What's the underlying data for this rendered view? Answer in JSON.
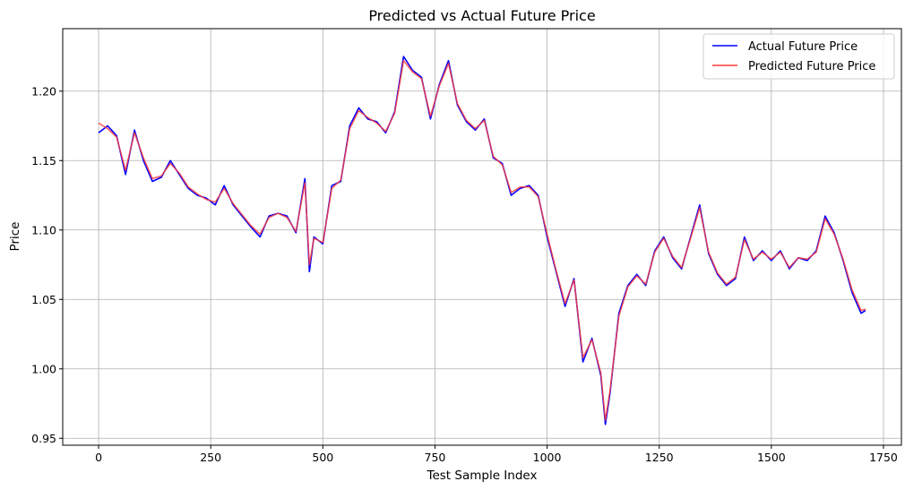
{
  "chart_data": {
    "type": "line",
    "title": "Predicted vs Actual Future Price",
    "xlabel": "Test Sample Index",
    "ylabel": "Price",
    "xlim": [
      -80,
      1790
    ],
    "ylim": [
      0.945,
      1.245
    ],
    "xticks": [
      0,
      250,
      500,
      750,
      1000,
      1250,
      1500,
      1750
    ],
    "yticks": [
      0.95,
      1.0,
      1.05,
      1.1,
      1.15,
      1.2
    ],
    "ytick_labels": [
      "0.95",
      "1.00",
      "1.05",
      "1.10",
      "1.15",
      "1.20"
    ],
    "grid": true,
    "legend_position": "top-right",
    "colors": {
      "actual": "#0000ff",
      "predicted": "#ff3b3b"
    },
    "x": [
      0,
      20,
      40,
      60,
      80,
      100,
      120,
      140,
      160,
      180,
      200,
      220,
      240,
      260,
      280,
      300,
      320,
      340,
      360,
      380,
      400,
      420,
      440,
      460,
      470,
      480,
      500,
      520,
      540,
      560,
      580,
      600,
      620,
      640,
      660,
      680,
      700,
      720,
      740,
      760,
      780,
      800,
      820,
      840,
      860,
      880,
      900,
      920,
      940,
      960,
      980,
      1000,
      1020,
      1040,
      1060,
      1080,
      1100,
      1120,
      1130,
      1140,
      1160,
      1180,
      1200,
      1220,
      1240,
      1260,
      1280,
      1300,
      1320,
      1340,
      1360,
      1380,
      1400,
      1420,
      1440,
      1460,
      1480,
      1500,
      1520,
      1540,
      1560,
      1580,
      1600,
      1620,
      1640,
      1660,
      1680,
      1700,
      1710
    ],
    "series": [
      {
        "name": "Actual Future Price",
        "values": [
          1.17,
          1.175,
          1.168,
          1.14,
          1.172,
          1.15,
          1.135,
          1.138,
          1.15,
          1.14,
          1.13,
          1.125,
          1.123,
          1.118,
          1.132,
          1.118,
          1.11,
          1.102,
          1.095,
          1.11,
          1.112,
          1.11,
          1.098,
          1.137,
          1.07,
          1.095,
          1.09,
          1.132,
          1.135,
          1.175,
          1.188,
          1.18,
          1.178,
          1.17,
          1.185,
          1.225,
          1.215,
          1.21,
          1.18,
          1.205,
          1.222,
          1.19,
          1.178,
          1.172,
          1.18,
          1.152,
          1.148,
          1.125,
          1.13,
          1.132,
          1.125,
          1.095,
          1.07,
          1.045,
          1.065,
          1.005,
          1.022,
          0.995,
          0.96,
          0.982,
          1.04,
          1.06,
          1.068,
          1.06,
          1.085,
          1.095,
          1.08,
          1.072,
          1.095,
          1.118,
          1.083,
          1.068,
          1.06,
          1.065,
          1.095,
          1.078,
          1.085,
          1.078,
          1.085,
          1.072,
          1.08,
          1.078,
          1.085,
          1.11,
          1.098,
          1.078,
          1.055,
          1.04,
          1.042
        ]
      },
      {
        "name": "Predicted Future Price",
        "values": [
          1.177,
          1.173,
          1.167,
          1.143,
          1.17,
          1.152,
          1.137,
          1.139,
          1.148,
          1.141,
          1.131,
          1.126,
          1.122,
          1.12,
          1.13,
          1.119,
          1.111,
          1.103,
          1.097,
          1.109,
          1.112,
          1.109,
          1.099,
          1.134,
          1.075,
          1.094,
          1.091,
          1.13,
          1.136,
          1.173,
          1.186,
          1.181,
          1.177,
          1.171,
          1.184,
          1.222,
          1.214,
          1.209,
          1.182,
          1.204,
          1.22,
          1.191,
          1.179,
          1.173,
          1.179,
          1.153,
          1.147,
          1.127,
          1.131,
          1.131,
          1.124,
          1.097,
          1.071,
          1.047,
          1.064,
          1.008,
          1.021,
          0.997,
          0.963,
          0.984,
          1.038,
          1.059,
          1.067,
          1.061,
          1.084,
          1.094,
          1.081,
          1.073,
          1.094,
          1.116,
          1.084,
          1.069,
          1.061,
          1.066,
          1.093,
          1.079,
          1.084,
          1.079,
          1.084,
          1.073,
          1.08,
          1.079,
          1.084,
          1.108,
          1.097,
          1.079,
          1.057,
          1.042,
          1.043
        ]
      }
    ]
  }
}
